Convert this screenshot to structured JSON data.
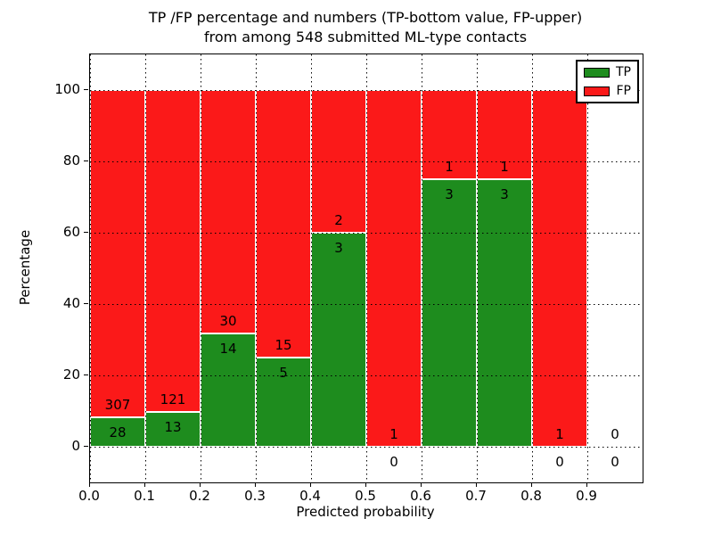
{
  "title": {
    "line1": "TP /FP percentage and numbers (TP-bottom value, FP-upper)",
    "line2": "from among 548 submitted ML-type contacts"
  },
  "axes": {
    "xlabel": "Predicted probability",
    "ylabel": "Percentage",
    "xticks": [
      "0.0",
      "0.1",
      "0.2",
      "0.3",
      "0.4",
      "0.5",
      "0.6",
      "0.7",
      "0.8",
      "0.9"
    ],
    "yticks": [
      "0",
      "20",
      "40",
      "60",
      "80",
      "100"
    ],
    "xlim": [
      0.0,
      1.0
    ],
    "ylim": [
      -10,
      110
    ],
    "grid": "dotted"
  },
  "legend": {
    "position": "upper-right",
    "items": [
      {
        "label": "TP",
        "color": "#1e8c1e"
      },
      {
        "label": "FP",
        "color": "#fb1919"
      }
    ]
  },
  "colors": {
    "tp": "#1e8c1e",
    "fp": "#fb1919",
    "bar_edge": "#ffffff",
    "grid": "#000000",
    "background": "#ffffff",
    "text": "#000000"
  },
  "chart_data": {
    "type": "bar",
    "stacked": true,
    "normalized_to_percent": true,
    "title": "TP /FP percentage and numbers (TP-bottom value, FP-upper) from among 548 submitted ML-type contacts",
    "xlabel": "Predicted probability",
    "ylabel": "Percentage",
    "xlim": [
      0.0,
      1.0
    ],
    "ylim": [
      -10,
      110
    ],
    "bin_width": 0.1,
    "bin_starts": [
      0.0,
      0.1,
      0.2,
      0.3,
      0.4,
      0.5,
      0.6,
      0.7,
      0.8,
      0.9
    ],
    "categories": [
      "0.0",
      "0.1",
      "0.2",
      "0.3",
      "0.4",
      "0.5",
      "0.6",
      "0.7",
      "0.8",
      "0.9"
    ],
    "series": [
      {
        "name": "TP",
        "color": "#1e8c1e",
        "counts": [
          28,
          13,
          14,
          5,
          3,
          0,
          3,
          3,
          0,
          0
        ]
      },
      {
        "name": "FP",
        "color": "#fb1919",
        "counts": [
          307,
          121,
          30,
          15,
          2,
          1,
          1,
          1,
          1,
          0
        ]
      }
    ],
    "total_contacts": 548,
    "legend": [
      "TP",
      "FP"
    ]
  }
}
